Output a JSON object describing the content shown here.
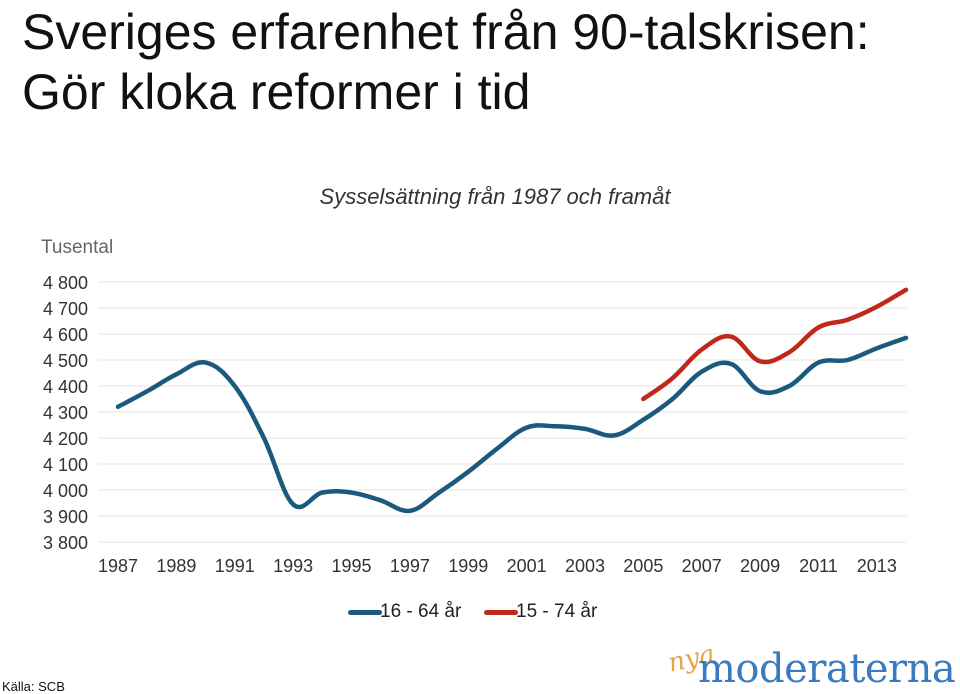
{
  "title": "Sveriges erfarenhet från 90-talskrisen: Gör kloka reformer i tid",
  "subtitle": "Sysselsättning från 1987 och framåt",
  "unit_label": "Tusental",
  "source": "Källa: SCB",
  "logo": {
    "prefix": "nya",
    "name": "moderaterna"
  },
  "colors": {
    "series_1": "#1b5a7e",
    "series_2": "#c0281b",
    "grid": "#e3e3e3",
    "logo_blue": "#3a7bbf",
    "logo_orange": "#e8a33d"
  },
  "chart_data": {
    "type": "line",
    "title": "Sysselsättning från 1987 och framåt",
    "ylabel": "Tusental",
    "xlabel": "",
    "ylim": [
      3800,
      4800
    ],
    "yticks": [
      3800,
      3900,
      4000,
      4100,
      4200,
      4300,
      4400,
      4500,
      4600,
      4700,
      4800
    ],
    "ytick_labels": [
      "3 800",
      "3 900",
      "4 000",
      "4 100",
      "4 200",
      "4 300",
      "4 400",
      "4 500",
      "4 600",
      "4 700",
      "4 800"
    ],
    "xlim": [
      1987,
      2014
    ],
    "xticks": [
      1987,
      1989,
      1991,
      1993,
      1995,
      1997,
      1999,
      2001,
      2003,
      2005,
      2007,
      2009,
      2011,
      2013
    ],
    "grid": true,
    "legend_position": "bottom",
    "series": [
      {
        "name": "16 - 64 år",
        "color": "#1b5a7e",
        "x": [
          1987,
          1988,
          1989,
          1990,
          1991,
          1992,
          1993,
          1994,
          1995,
          1996,
          1997,
          1998,
          1999,
          2000,
          2001,
          2002,
          2003,
          2004,
          2005,
          2006,
          2007,
          2008,
          2009,
          2010,
          2011,
          2012,
          2013,
          2014
        ],
        "y": [
          4320,
          4380,
          4445,
          4490,
          4400,
          4200,
          3945,
          3990,
          3990,
          3960,
          3920,
          3990,
          4070,
          4160,
          4240,
          4245,
          4235,
          4210,
          4270,
          4350,
          4455,
          4485,
          4380,
          4400,
          4490,
          4500,
          4545,
          4585
        ]
      },
      {
        "name": "15 - 74 år",
        "color": "#c0281b",
        "x": [
          2005,
          2006,
          2007,
          2008,
          2009,
          2010,
          2011,
          2012,
          2013,
          2014
        ],
        "y": [
          4350,
          4430,
          4540,
          4590,
          4495,
          4530,
          4625,
          4655,
          4705,
          4770
        ]
      }
    ]
  }
}
